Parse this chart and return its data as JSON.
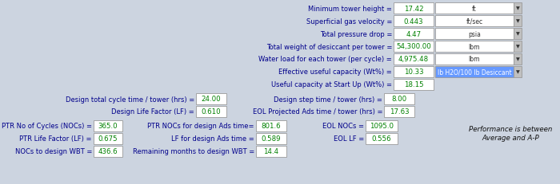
{
  "bg_color": "#ccd4e0",
  "right_labels": [
    "Minimum tower height =",
    "Superficial gas velocity =",
    "Total pressure drop =",
    "Total weight of desiccant per tower =",
    "Water load for each tower (per cycle) =",
    "Effective useful capacity (Wt%) =",
    "Useful capacity at Start Up (Wt%) ="
  ],
  "right_values": [
    "17.42",
    "0.443",
    "4.47",
    "54,300.00",
    "4,975.48",
    "10.33",
    "18.15"
  ],
  "right_units": [
    "ft",
    "ft/sec",
    "psia",
    "lbm",
    "lbm",
    "lb H2O/100 lb Desiccant",
    ""
  ],
  "right_units_highlighted": [
    false,
    false,
    false,
    false,
    false,
    true,
    false
  ],
  "mid_left_labels": [
    "Design total cycle time / tower (hrs) =",
    "Design Life Factor (LF) ="
  ],
  "mid_left_values": [
    "24.00",
    "0.610"
  ],
  "mid_right_labels": [
    "Design step time / tower (hrs) =",
    "EOL Projected Ads time / tower (hrs) ="
  ],
  "mid_right_values": [
    "8.00",
    "17.63"
  ],
  "bottom_col1_labels": [
    "PTR No of Cycles (NOCs) =",
    "PTR Life Factor (LF) =",
    "NOCs to design WBT ="
  ],
  "bottom_col1_values": [
    "365.0",
    "0.675",
    "436.6"
  ],
  "bottom_col2_labels": [
    "PTR NOCs for design Ads time=",
    "LF for design Ads time =",
    "Remaining months to design WBT ="
  ],
  "bottom_col2_values": [
    "801.6",
    "0.589",
    "14.4"
  ],
  "bottom_col3_labels": [
    "EOL NOCs =",
    "EOL LF ="
  ],
  "bottom_col3_values": [
    "1095.0",
    "0.556"
  ],
  "performance_text": "Performance is between\nAverage and A-P",
  "value_color": "#008000",
  "label_color": "#00008b",
  "box_bg": "#ffffff",
  "highlight_bg": "#6699ff",
  "highlight_text": "#ffffff",
  "arrow_bg": "#c0c0c0"
}
